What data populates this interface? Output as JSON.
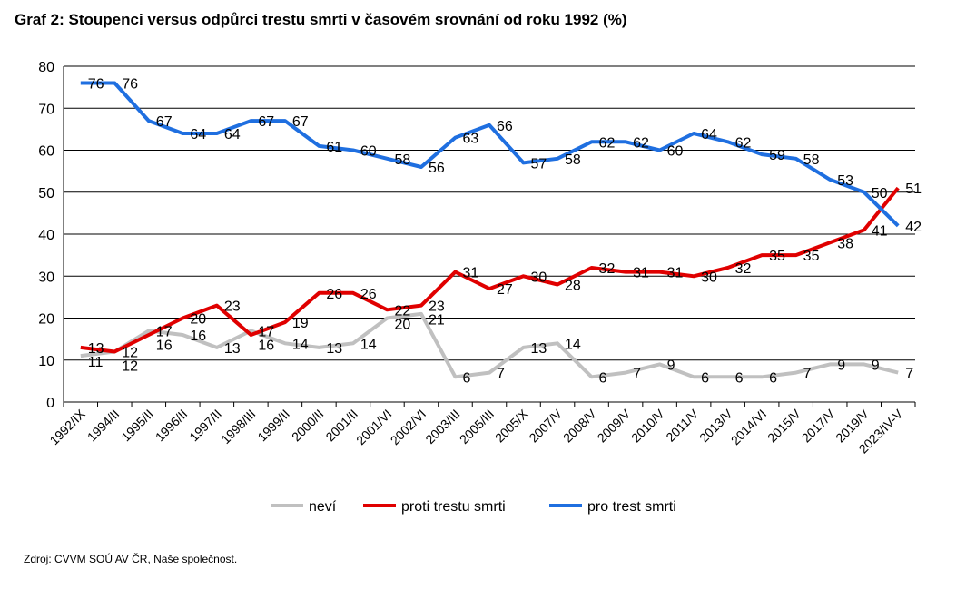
{
  "title": "Graf 2: Stoupenci versus odpůrci trestu smrti v časovém srovnání od roku 1992 (%)",
  "source": "Zdroj: CVVM SOÚ AV ČR, Naše společnost.",
  "chart_data": {
    "type": "line",
    "title": "Graf 2: Stoupenci versus odpůrci trestu smrti v časovém srovnání od roku 1992 (%)",
    "xlabel": "",
    "ylabel": "",
    "ylim": [
      0,
      80
    ],
    "yticks": [
      "0",
      "10",
      "20",
      "30",
      "40",
      "50",
      "60",
      "70",
      "80"
    ],
    "grid": true,
    "legend": "bottom",
    "categories": [
      "1992/IX",
      "1994/II",
      "1995/II",
      "1996/II",
      "1997/II",
      "1998/III",
      "1999/II",
      "2000/II",
      "2001/II",
      "2001/VI",
      "2002/VI",
      "2003/III",
      "2005/III",
      "2005/X",
      "2007/V",
      "2008/V",
      "2009/V",
      "2010/V",
      "2011/V",
      "2013/V",
      "2014/VI",
      "2015/V",
      "2017/V",
      "2019/V",
      "2023/IV-V"
    ],
    "series": [
      {
        "name": "neví",
        "color": "#c0c0c0",
        "values": [
          11,
          12,
          17,
          16,
          13,
          17,
          14,
          13,
          14,
          20,
          21,
          6,
          7,
          13,
          14,
          6,
          7,
          9,
          6,
          6,
          6,
          7,
          9,
          9,
          7
        ]
      },
      {
        "name": "proti trestu smrti",
        "color": "#e00000",
        "values": [
          13,
          12,
          16,
          20,
          23,
          16,
          19,
          26,
          26,
          22,
          23,
          31,
          27,
          30,
          28,
          32,
          31,
          31,
          30,
          32,
          35,
          35,
          38,
          41,
          51
        ]
      },
      {
        "name": "pro trest smrti",
        "color": "#1f6fe0",
        "values": [
          76,
          76,
          67,
          64,
          64,
          67,
          67,
          61,
          60,
          58,
          56,
          63,
          66,
          57,
          58,
          62,
          62,
          60,
          64,
          62,
          59,
          58,
          53,
          50,
          42
        ]
      }
    ]
  }
}
